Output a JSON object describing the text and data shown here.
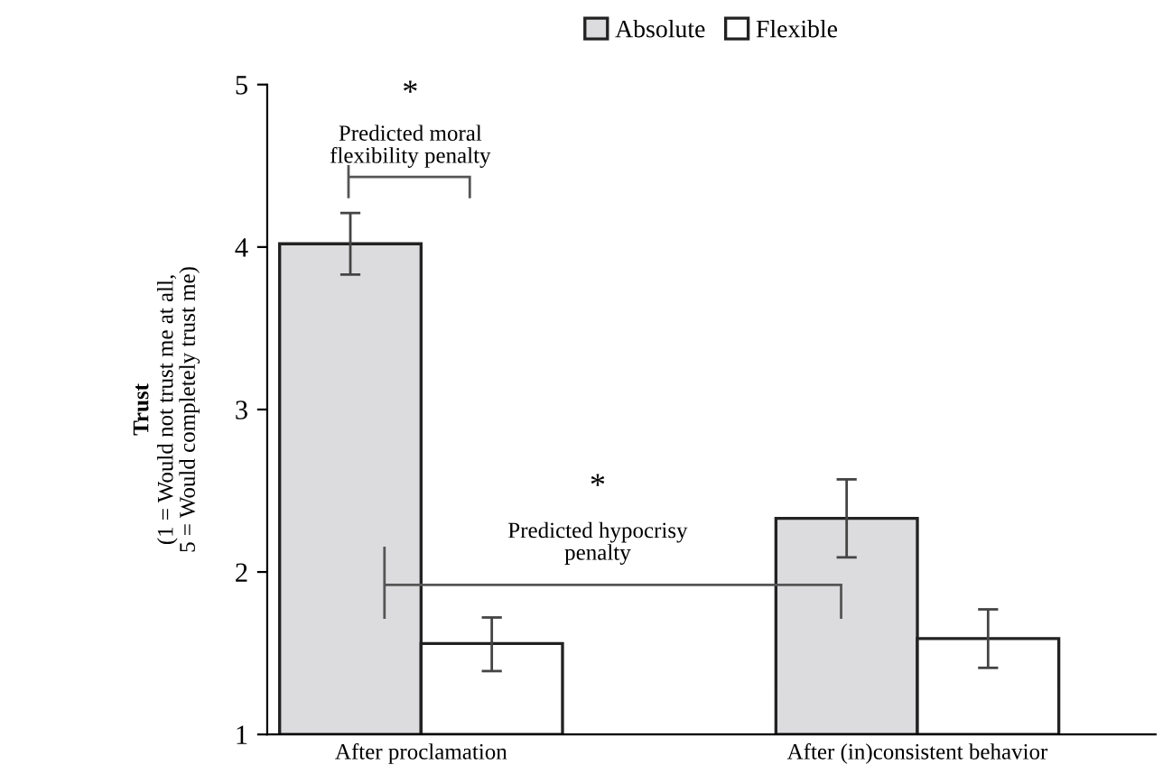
{
  "chart_data": {
    "type": "bar",
    "categories": [
      "After proclamation",
      "After (in)consistent behavior"
    ],
    "series": [
      {
        "name": "Absolute",
        "color": "#dcdcde",
        "values": [
          4.02,
          2.33
        ],
        "errors": [
          [
            3.83,
            4.21
          ],
          [
            2.09,
            2.57
          ]
        ]
      },
      {
        "name": "Flexible",
        "color": "#ffffff",
        "values": [
          1.56,
          1.59
        ],
        "errors": [
          [
            1.39,
            1.72
          ],
          [
            1.41,
            1.77
          ]
        ]
      }
    ],
    "ylabel": "Trust\n(1 = Would not trust me at all,\n5 = Would completely trust me)",
    "ylim": [
      1,
      5
    ],
    "yticks": [
      1,
      2,
      3,
      4,
      5
    ],
    "grid": false,
    "legend": "top",
    "annotations": [
      "*",
      "Predicted moral\nflexibility penalty",
      "*",
      "Predicted hypocrisy\npenalty"
    ]
  }
}
